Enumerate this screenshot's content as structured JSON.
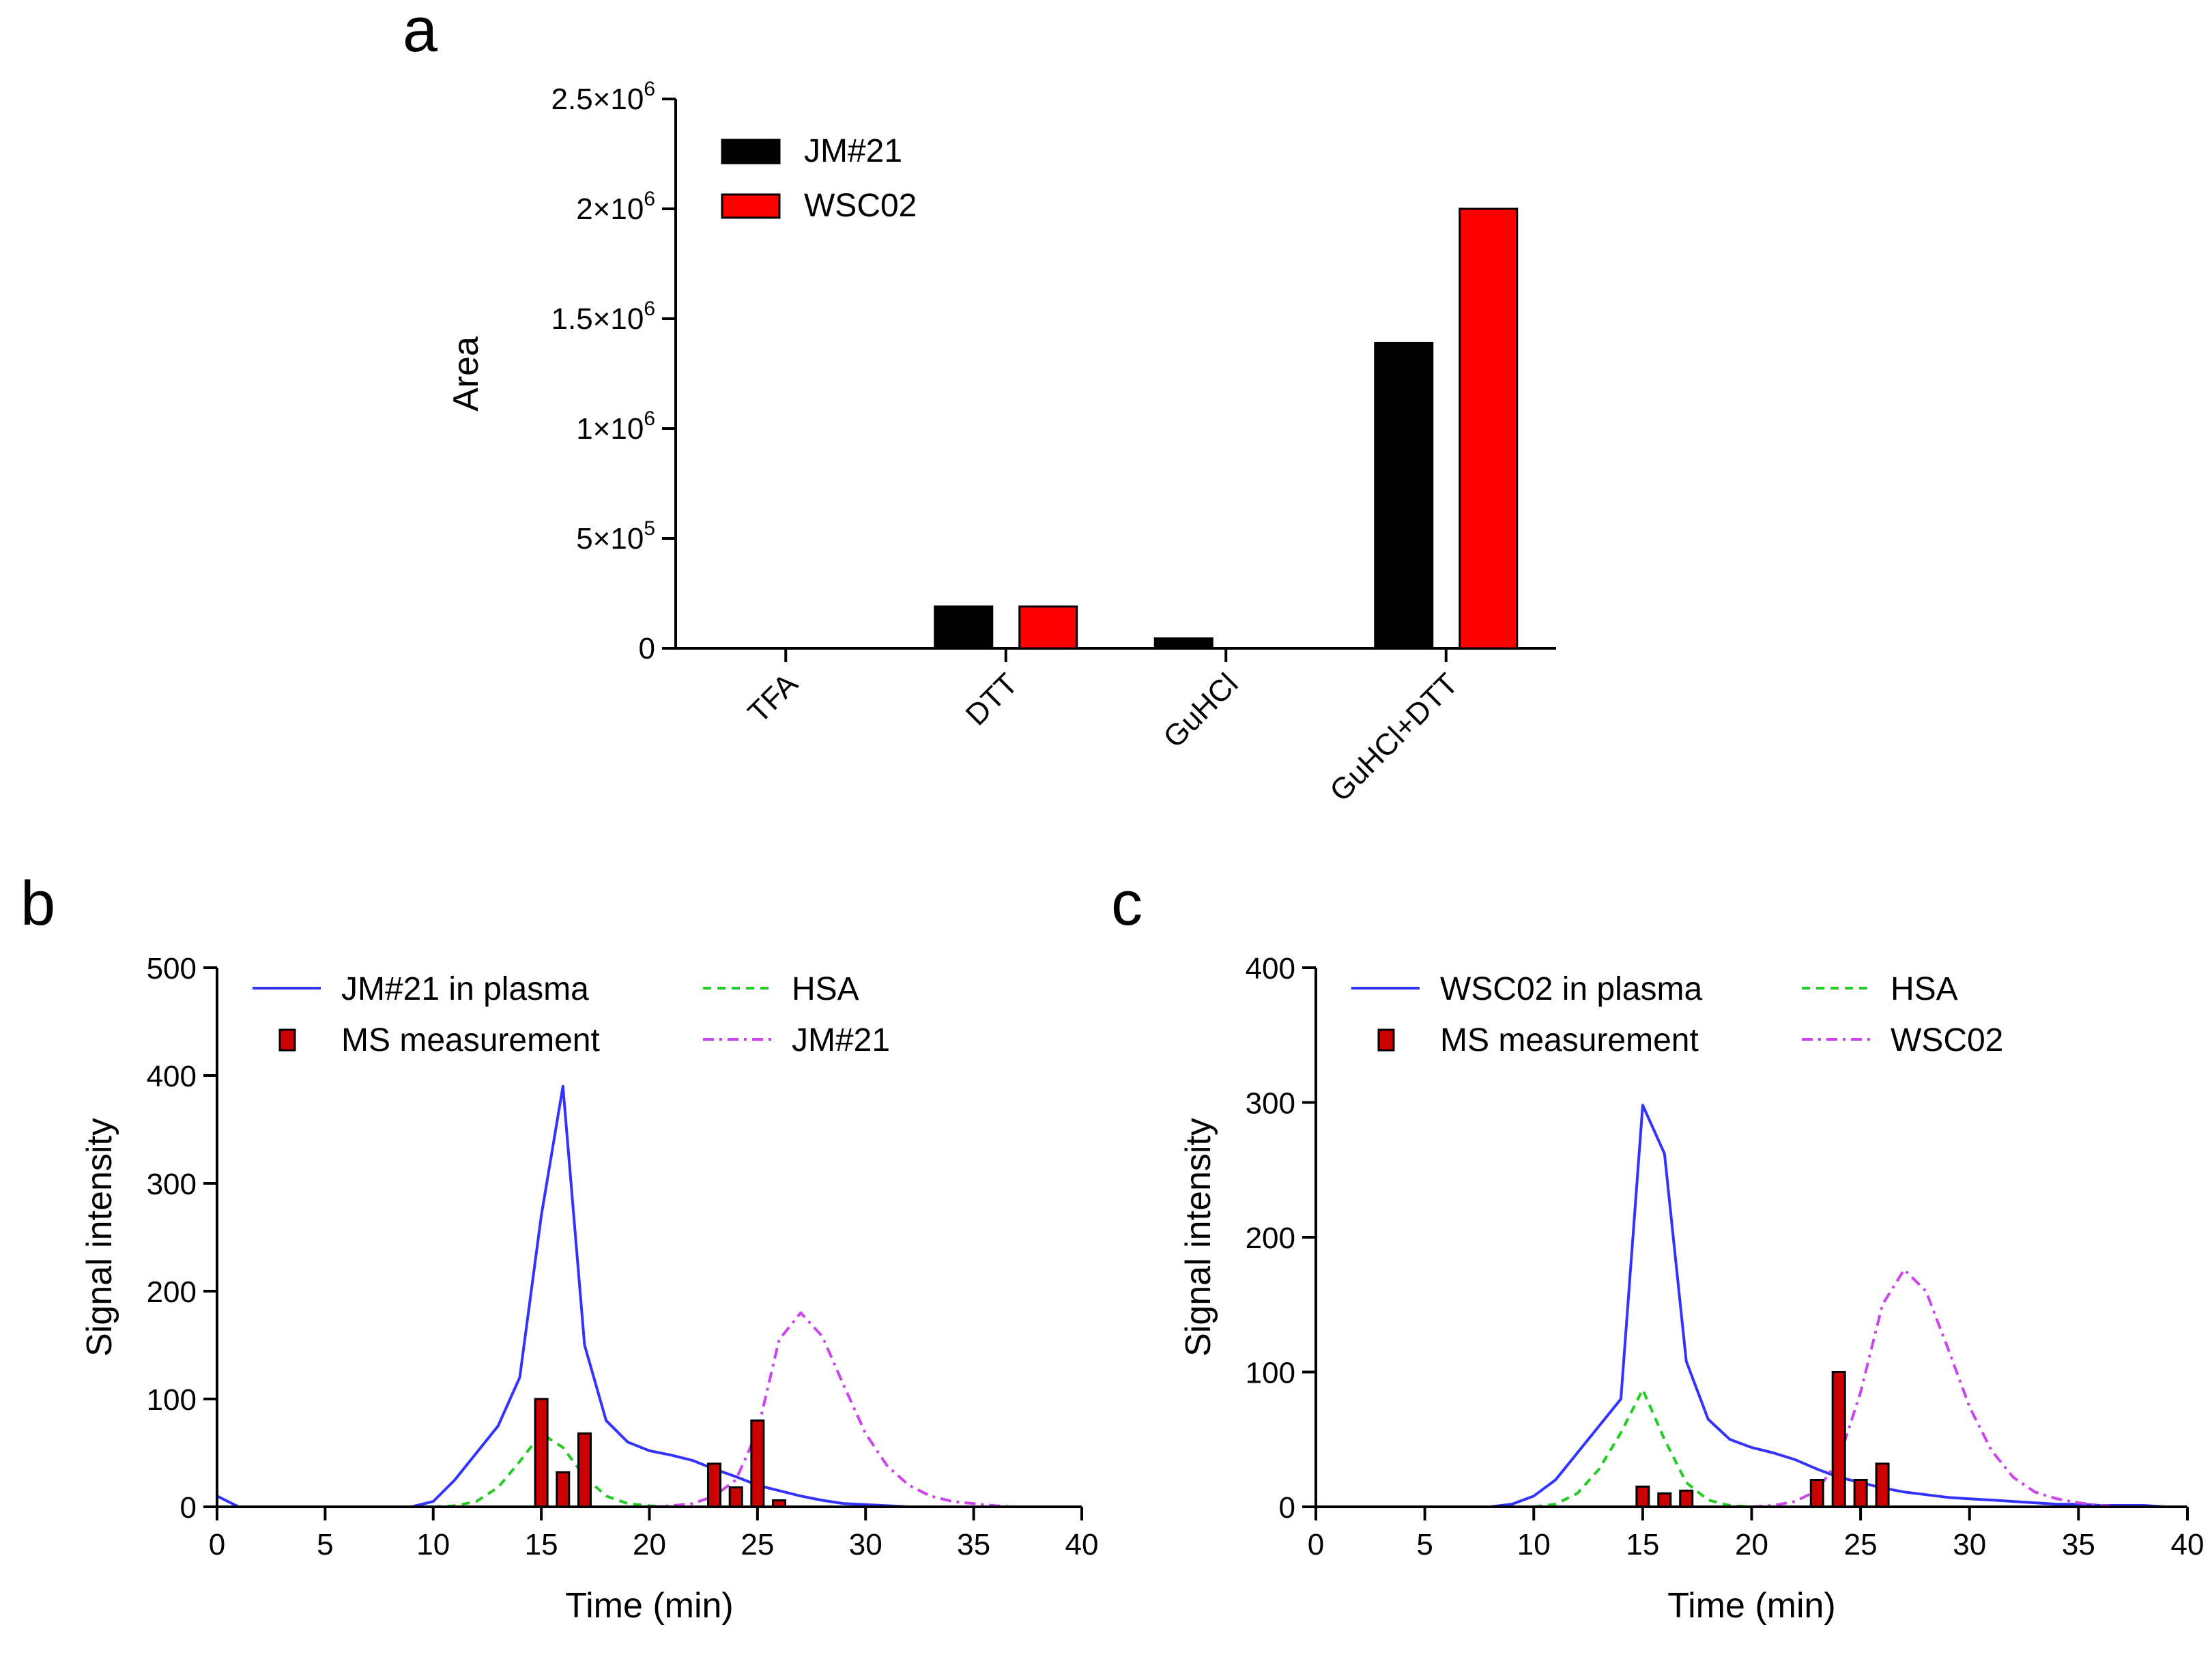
{
  "panels": {
    "a": "a",
    "b": "b",
    "c": "c"
  },
  "colors": {
    "black": "#000000",
    "red": "#ff0000",
    "blue": "#3333ff",
    "green": "#22cc22",
    "magenta": "#cc44ee",
    "darkred": "#cc0000"
  },
  "chart_data": [
    {
      "id": "a",
      "type": "bar",
      "title": "",
      "xlabel": "",
      "ylabel": "Area",
      "ylim": [
        0,
        2500000
      ],
      "yticks": [
        0,
        500000,
        1000000,
        1500000,
        2000000,
        2500000
      ],
      "ytick_labels": [
        {
          "mant": "0",
          "exp": ""
        },
        {
          "mant": "5×10",
          "exp": "5"
        },
        {
          "mant": "1×10",
          "exp": "6"
        },
        {
          "mant": "1.5×10",
          "exp": "6"
        },
        {
          "mant": "2×10",
          "exp": "6"
        },
        {
          "mant": "2.5×10",
          "exp": "6"
        }
      ],
      "categories": [
        "TFA",
        "DTT",
        "GuHCl",
        "GuHCl+DTT"
      ],
      "series": [
        {
          "name": "JM#21",
          "color": "#000000",
          "values": [
            0,
            190000,
            45000,
            1390000
          ]
        },
        {
          "name": "WSC02",
          "color": "#ff0000",
          "values": [
            0,
            190000,
            0,
            2000000
          ]
        }
      ],
      "legend": "top-left"
    },
    {
      "id": "b",
      "type": "line",
      "xlabel": "Time (min)",
      "ylabel": "Signal intensity",
      "xlim": [
        0,
        40
      ],
      "ylim": [
        0,
        500
      ],
      "xticks": [
        0,
        5,
        10,
        15,
        20,
        25,
        30,
        35,
        40
      ],
      "yticks": [
        0,
        100,
        200,
        300,
        400,
        500
      ],
      "legend": "top",
      "lines": [
        {
          "name": "JM#21 in plasma",
          "style": "solid",
          "color": "#3333ff",
          "points": [
            [
              0,
              10
            ],
            [
              1,
              0
            ],
            [
              2,
              0
            ],
            [
              3,
              0
            ],
            [
              4,
              0
            ],
            [
              5,
              0
            ],
            [
              6,
              0
            ],
            [
              7,
              0
            ],
            [
              8,
              0
            ],
            [
              9,
              0
            ],
            [
              10,
              5
            ],
            [
              11,
              25
            ],
            [
              12,
              50
            ],
            [
              13,
              75
            ],
            [
              14,
              120
            ],
            [
              15,
              270
            ],
            [
              16,
              390
            ],
            [
              17,
              150
            ],
            [
              18,
              80
            ],
            [
              19,
              60
            ],
            [
              20,
              52
            ],
            [
              21,
              48
            ],
            [
              22,
              43
            ],
            [
              23,
              35
            ],
            [
              24,
              28
            ],
            [
              25,
              20
            ],
            [
              26,
              15
            ],
            [
              27,
              10
            ],
            [
              28,
              6
            ],
            [
              29,
              3
            ],
            [
              30,
              2
            ],
            [
              31,
              1
            ],
            [
              32,
              0
            ],
            [
              33,
              0
            ],
            [
              34,
              0
            ],
            [
              35,
              0
            ],
            [
              36,
              0
            ],
            [
              37,
              0
            ],
            [
              38,
              0
            ],
            [
              39,
              0
            ]
          ]
        },
        {
          "name": "HSA",
          "style": "dashed",
          "color": "#22cc22",
          "points": [
            [
              10,
              0
            ],
            [
              11,
              1
            ],
            [
              12,
              5
            ],
            [
              13,
              18
            ],
            [
              14,
              42
            ],
            [
              15,
              68
            ],
            [
              16,
              55
            ],
            [
              17,
              28
            ],
            [
              18,
              10
            ],
            [
              19,
              3
            ],
            [
              20,
              1
            ],
            [
              21,
              0
            ]
          ]
        },
        {
          "name": "JM#21",
          "style": "dashdot",
          "color": "#cc44ee",
          "points": [
            [
              20,
              0
            ],
            [
              21,
              1
            ],
            [
              22,
              3
            ],
            [
              23,
              10
            ],
            [
              24,
              25
            ],
            [
              25,
              70
            ],
            [
              26,
              155
            ],
            [
              27,
              180
            ],
            [
              28,
              158
            ],
            [
              29,
              112
            ],
            [
              30,
              68
            ],
            [
              31,
              38
            ],
            [
              32,
              20
            ],
            [
              33,
              10
            ],
            [
              34,
              5
            ],
            [
              35,
              3
            ],
            [
              36,
              1
            ],
            [
              37,
              0
            ],
            [
              38,
              0
            ]
          ]
        }
      ],
      "bars": {
        "name": "MS measurement",
        "color": "#cc0000",
        "points": [
          [
            15,
            100
          ],
          [
            16,
            32
          ],
          [
            17,
            68
          ],
          [
            23,
            40
          ],
          [
            24,
            18
          ],
          [
            25,
            80
          ],
          [
            26,
            6
          ]
        ]
      }
    },
    {
      "id": "c",
      "type": "line",
      "xlabel": "Time (min)",
      "ylabel": "Signal intensity",
      "xlim": [
        0,
        40
      ],
      "ylim": [
        0,
        400
      ],
      "xticks": [
        0,
        5,
        10,
        15,
        20,
        25,
        30,
        35,
        40
      ],
      "yticks": [
        0,
        100,
        200,
        300,
        400
      ],
      "legend": "top",
      "lines": [
        {
          "name": "WSC02 in plasma",
          "style": "solid",
          "color": "#3333ff",
          "points": [
            [
              0,
              0
            ],
            [
              1,
              0
            ],
            [
              2,
              0
            ],
            [
              3,
              0
            ],
            [
              4,
              0
            ],
            [
              5,
              0
            ],
            [
              6,
              0
            ],
            [
              7,
              0
            ],
            [
              8,
              0
            ],
            [
              9,
              2
            ],
            [
              10,
              8
            ],
            [
              11,
              20
            ],
            [
              12,
              40
            ],
            [
              13,
              60
            ],
            [
              14,
              80
            ],
            [
              15,
              298
            ],
            [
              16,
              262
            ],
            [
              17,
              108
            ],
            [
              18,
              65
            ],
            [
              19,
              50
            ],
            [
              20,
              44
            ],
            [
              21,
              40
            ],
            [
              22,
              35
            ],
            [
              23,
              28
            ],
            [
              24,
              22
            ],
            [
              25,
              18
            ],
            [
              26,
              14
            ],
            [
              27,
              11
            ],
            [
              28,
              9
            ],
            [
              29,
              7
            ],
            [
              30,
              6
            ],
            [
              31,
              5
            ],
            [
              32,
              4
            ],
            [
              33,
              3
            ],
            [
              34,
              2
            ],
            [
              35,
              2
            ],
            [
              36,
              1
            ],
            [
              37,
              1
            ],
            [
              38,
              1
            ],
            [
              39,
              0
            ]
          ]
        },
        {
          "name": "HSA",
          "style": "dashed",
          "color": "#22cc22",
          "points": [
            [
              10,
              0
            ],
            [
              11,
              2
            ],
            [
              12,
              10
            ],
            [
              13,
              28
            ],
            [
              14,
              55
            ],
            [
              15,
              87
            ],
            [
              16,
              50
            ],
            [
              17,
              18
            ],
            [
              18,
              5
            ],
            [
              19,
              1
            ],
            [
              20,
              0
            ]
          ]
        },
        {
          "name": "WSC02",
          "style": "dashdot",
          "color": "#cc44ee",
          "points": [
            [
              20,
              0
            ],
            [
              21,
              1
            ],
            [
              22,
              4
            ],
            [
              23,
              12
            ],
            [
              24,
              35
            ],
            [
              25,
              85
            ],
            [
              26,
              150
            ],
            [
              27,
              176
            ],
            [
              28,
              160
            ],
            [
              29,
              118
            ],
            [
              30,
              74
            ],
            [
              31,
              42
            ],
            [
              32,
              22
            ],
            [
              33,
              11
            ],
            [
              34,
              6
            ],
            [
              35,
              3
            ],
            [
              36,
              1
            ],
            [
              37,
              0
            ],
            [
              38,
              0
            ]
          ]
        }
      ],
      "bars": {
        "name": "MS measurement",
        "color": "#cc0000",
        "points": [
          [
            15,
            15
          ],
          [
            16,
            10
          ],
          [
            17,
            12
          ],
          [
            23,
            20
          ],
          [
            24,
            100
          ],
          [
            25,
            20
          ],
          [
            26,
            32
          ]
        ]
      }
    }
  ]
}
